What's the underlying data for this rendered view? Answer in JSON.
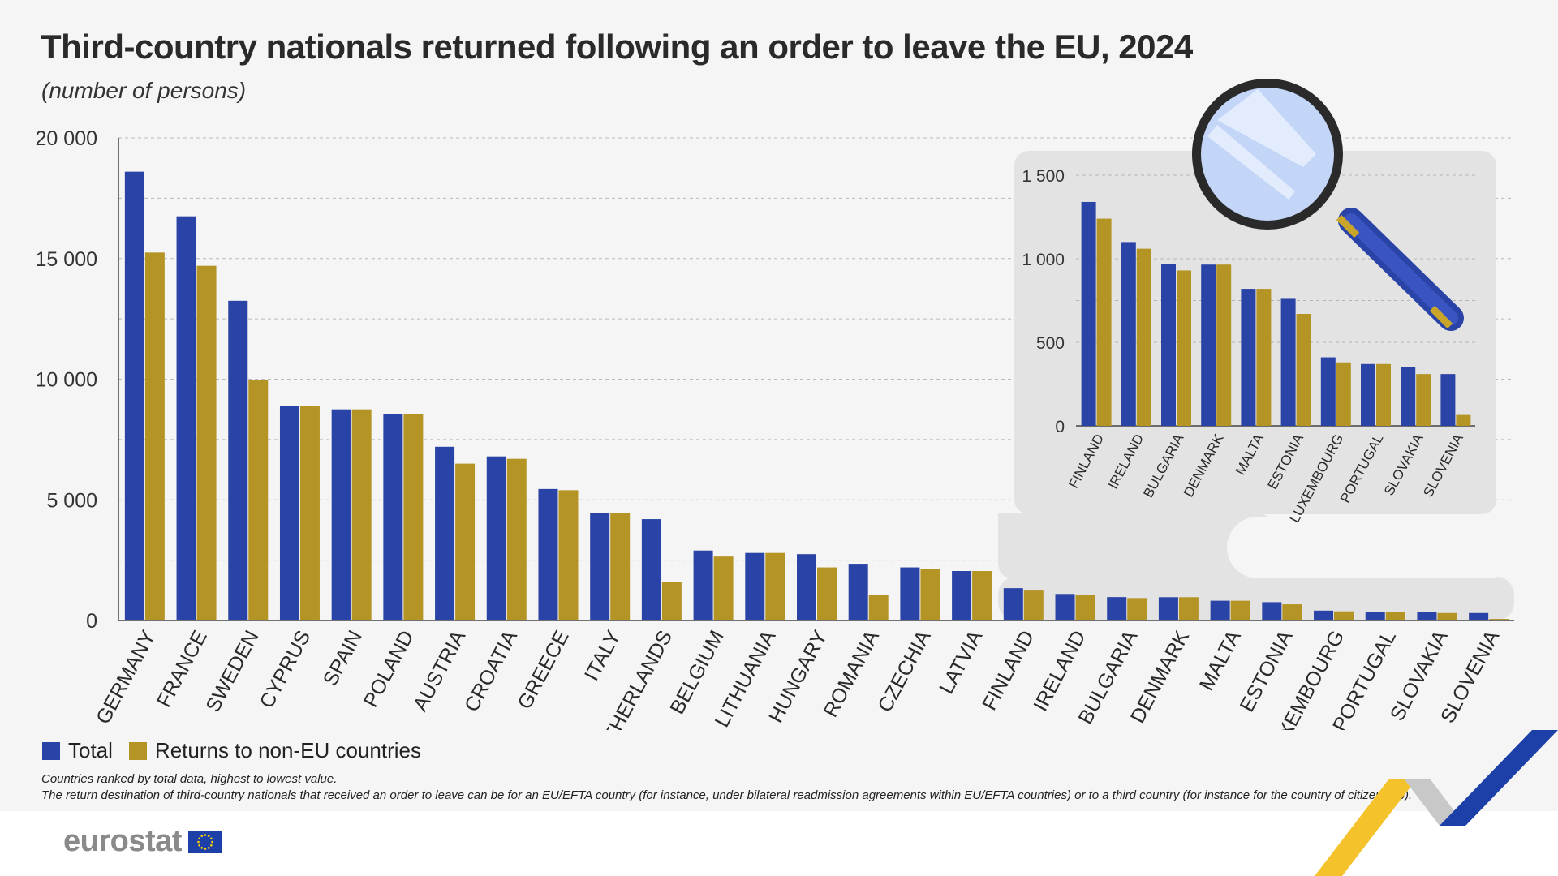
{
  "header": {
    "title": "Third-country nationals returned following an order to leave the EU, 2024",
    "subtitle": "(number of persons)"
  },
  "legend": {
    "total": "Total",
    "non_eu": "Returns to non-EU countries"
  },
  "notes": {
    "line1": "Countries ranked by total data, highest to lowest value.",
    "line2": "The return destination of third-country nationals that received an order to leave can be for an EU/EFTA country (for instance, under bilateral readmission agreements within EU/EFTA countries) or to a third country (for instance for the country of citizenship)."
  },
  "branding": {
    "logo_text": "eurostat"
  },
  "colors": {
    "total": "#2a43a6",
    "non_eu": "#b49425",
    "background": "#f5f5f5",
    "inset": "#e3e3e3"
  },
  "icons": {
    "magnifier": "magnifier-icon",
    "flag": "eu-flag-icon"
  },
  "chart_data": [
    {
      "type": "bar",
      "title": "Third-country nationals returned following an order to leave the EU, 2024",
      "subtitle": "(number of persons)",
      "categories": [
        "GERMANY",
        "FRANCE",
        "SWEDEN",
        "CYPRUS",
        "SPAIN",
        "POLAND",
        "AUSTRIA",
        "CROATIA",
        "GREECE",
        "ITALY",
        "NETHERLANDS",
        "BELGIUM",
        "LITHUANIA",
        "HUNGARY",
        "ROMANIA",
        "CZECHIA",
        "LATVIA",
        "FINLAND",
        "IRELAND",
        "BULGARIA",
        "DENMARK",
        "MALTA",
        "ESTONIA",
        "LUXEMBOURG",
        "PORTUGAL",
        "SLOVAKIA",
        "SLOVENIA"
      ],
      "series": [
        {
          "name": "Total",
          "values": [
            18600,
            16750,
            13250,
            8900,
            8750,
            8550,
            7200,
            6800,
            5450,
            4450,
            4200,
            2900,
            2800,
            2750,
            2350,
            2200,
            2050,
            1340,
            1100,
            970,
            965,
            820,
            760,
            410,
            370,
            350,
            310
          ]
        },
        {
          "name": "Returns to non-EU countries",
          "values": [
            15250,
            14700,
            9950,
            8900,
            8750,
            8550,
            6500,
            6700,
            5400,
            4450,
            1600,
            2650,
            2800,
            2200,
            1050,
            2150,
            2050,
            1240,
            1060,
            930,
            965,
            820,
            670,
            380,
            370,
            310,
            65
          ]
        }
      ],
      "yticks": [
        "0",
        "5 000",
        "10 000",
        "15 000",
        "20 000"
      ],
      "ylim": [
        0,
        20000
      ],
      "grid": true,
      "legend": "bottom-left"
    },
    {
      "type": "bar",
      "title": "",
      "categories": [
        "FINLAND",
        "IRELAND",
        "BULGARIA",
        "DENMARK",
        "MALTA",
        "ESTONIA",
        "LUXEMBOURG",
        "PORTUGAL",
        "SLOVAKIA",
        "SLOVENIA"
      ],
      "series": [
        {
          "name": "Total",
          "values": [
            1340,
            1100,
            970,
            965,
            820,
            760,
            410,
            370,
            350,
            310
          ]
        },
        {
          "name": "Returns to non-EU countries",
          "values": [
            1240,
            1060,
            930,
            965,
            820,
            670,
            380,
            370,
            310,
            65
          ]
        }
      ],
      "yticks": [
        "0",
        "500",
        "1 000",
        "1 500"
      ],
      "ylim": [
        0,
        1500
      ],
      "grid": true
    }
  ]
}
